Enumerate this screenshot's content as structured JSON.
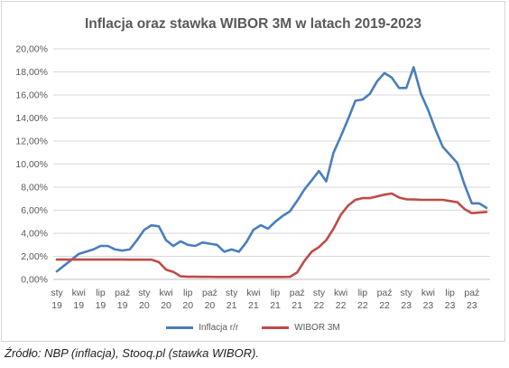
{
  "source_note": "Źródło: NBP (inflacja), Stooq.pl (stawka WIBOR).",
  "chart_data": {
    "type": "line",
    "title": "Inflacja oraz stawka WIBOR 3M w latach 2019-2023",
    "xlabel": "",
    "ylabel": "",
    "ylim": [
      0,
      20
    ],
    "yticks": [
      "0,00%",
      "2,00%",
      "4,00%",
      "6,00%",
      "8,00%",
      "10,00%",
      "12,00%",
      "14,00%",
      "16,00%",
      "18,00%",
      "20,00%"
    ],
    "xticks": [
      {
        "month": 0,
        "label": [
          "sty",
          "19"
        ]
      },
      {
        "month": 3,
        "label": [
          "kwi",
          "19"
        ]
      },
      {
        "month": 6,
        "label": [
          "lip",
          "19"
        ]
      },
      {
        "month": 9,
        "label": [
          "paź",
          "19"
        ]
      },
      {
        "month": 12,
        "label": [
          "sty",
          "20"
        ]
      },
      {
        "month": 15,
        "label": [
          "kwi",
          "20"
        ]
      },
      {
        "month": 18,
        "label": [
          "lip",
          "20"
        ]
      },
      {
        "month": 21,
        "label": [
          "paź",
          "20"
        ]
      },
      {
        "month": 24,
        "label": [
          "sty",
          "21"
        ]
      },
      {
        "month": 27,
        "label": [
          "kwi",
          "21"
        ]
      },
      {
        "month": 30,
        "label": [
          "lip",
          "21"
        ]
      },
      {
        "month": 33,
        "label": [
          "paź",
          "21"
        ]
      },
      {
        "month": 36,
        "label": [
          "sty",
          "22"
        ]
      },
      {
        "month": 39,
        "label": [
          "kwi",
          "22"
        ]
      },
      {
        "month": 42,
        "label": [
          "lip",
          "22"
        ]
      },
      {
        "month": 45,
        "label": [
          "paź",
          "22"
        ]
      },
      {
        "month": 48,
        "label": [
          "sty",
          "23"
        ]
      },
      {
        "month": 51,
        "label": [
          "kwi",
          "23"
        ]
      },
      {
        "month": 54,
        "label": [
          "lip",
          "23"
        ]
      },
      {
        "month": 57,
        "label": [
          "paź",
          "23"
        ]
      }
    ],
    "grid": true,
    "legend_position": "bottom",
    "series": [
      {
        "name": "Inflacja r/r",
        "color": "#4a7ebb",
        "values": [
          0.7,
          1.2,
          1.7,
          2.2,
          2.4,
          2.6,
          2.9,
          2.9,
          2.6,
          2.5,
          2.6,
          3.4,
          4.3,
          4.7,
          4.6,
          3.4,
          2.9,
          3.3,
          3.0,
          2.9,
          3.2,
          3.1,
          3.0,
          2.4,
          2.6,
          2.4,
          3.2,
          4.3,
          4.7,
          4.4,
          5.0,
          5.5,
          5.9,
          6.8,
          7.8,
          8.6,
          9.4,
          8.5,
          11.0,
          12.4,
          13.9,
          15.5,
          15.6,
          16.1,
          17.2,
          17.9,
          17.5,
          16.6,
          16.6,
          18.4,
          16.1,
          14.7,
          13.0,
          11.5,
          10.8,
          10.1,
          8.2,
          6.6,
          6.6,
          6.2
        ],
        "label_marks": true
      },
      {
        "name": "WIBOR 3M",
        "color": "#be4b48",
        "values": [
          1.72,
          1.72,
          1.72,
          1.72,
          1.72,
          1.72,
          1.72,
          1.72,
          1.72,
          1.72,
          1.71,
          1.71,
          1.71,
          1.71,
          1.5,
          0.85,
          0.65,
          0.27,
          0.23,
          0.23,
          0.22,
          0.22,
          0.21,
          0.21,
          0.21,
          0.21,
          0.21,
          0.21,
          0.21,
          0.21,
          0.21,
          0.21,
          0.22,
          0.6,
          1.6,
          2.4,
          2.8,
          3.4,
          4.4,
          5.6,
          6.4,
          6.9,
          7.05,
          7.05,
          7.2,
          7.35,
          7.45,
          7.1,
          6.95,
          6.93,
          6.9,
          6.9,
          6.9,
          6.9,
          6.8,
          6.7,
          6.1,
          5.75,
          5.8,
          5.85
        ]
      }
    ]
  }
}
